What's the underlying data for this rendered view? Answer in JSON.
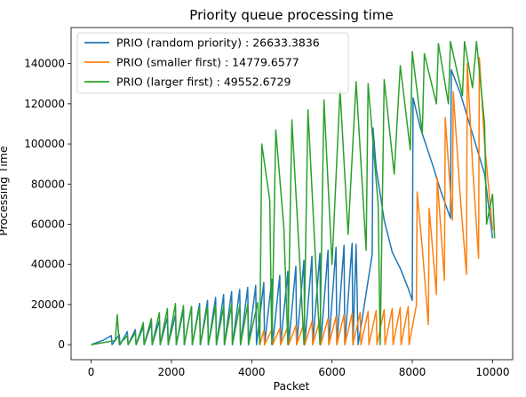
{
  "chart_data": {
    "type": "line",
    "title": "Priority queue processing time",
    "xlabel": "Packet",
    "ylabel": "Processing Time",
    "xlim": [
      -500,
      10500
    ],
    "ylim": [
      -7500,
      158000
    ],
    "xticks": [
      0,
      2000,
      4000,
      6000,
      8000,
      10000
    ],
    "yticks": [
      0,
      20000,
      40000,
      60000,
      80000,
      100000,
      120000,
      140000
    ],
    "grid": false,
    "legend_position": "top-left",
    "series": [
      {
        "name": "PRIO (random priority) : 26633.3836",
        "color": "#1f77b4",
        "points": [
          [
            0,
            0
          ],
          [
            300,
            2200
          ],
          [
            500,
            4500
          ],
          [
            520,
            0
          ],
          [
            700,
            5000
          ],
          [
            720,
            0
          ],
          [
            900,
            6500
          ],
          [
            920,
            0
          ],
          [
            1100,
            7500
          ],
          [
            1120,
            0
          ],
          [
            1300,
            9000
          ],
          [
            1320,
            0
          ],
          [
            1500,
            10500
          ],
          [
            1520,
            0
          ],
          [
            1700,
            12000
          ],
          [
            1720,
            0
          ],
          [
            1900,
            13500
          ],
          [
            1920,
            0
          ],
          [
            2100,
            15000
          ],
          [
            2120,
            0
          ],
          [
            2300,
            17000
          ],
          [
            2320,
            0
          ],
          [
            2500,
            19000
          ],
          [
            2520,
            0
          ],
          [
            2700,
            20500
          ],
          [
            2720,
            0
          ],
          [
            2900,
            22000
          ],
          [
            2920,
            0
          ],
          [
            3100,
            23500
          ],
          [
            3120,
            0
          ],
          [
            3300,
            25000
          ],
          [
            3320,
            0
          ],
          [
            3500,
            26500
          ],
          [
            3520,
            0
          ],
          [
            3700,
            27500
          ],
          [
            3720,
            0
          ],
          [
            3900,
            28500
          ],
          [
            3920,
            0
          ],
          [
            4100,
            29500
          ],
          [
            4120,
            0
          ],
          [
            4300,
            31000
          ],
          [
            4320,
            0
          ],
          [
            4500,
            32500
          ],
          [
            4520,
            0
          ],
          [
            4700,
            34500
          ],
          [
            4720,
            0
          ],
          [
            4900,
            36500
          ],
          [
            4920,
            0
          ],
          [
            5100,
            39000
          ],
          [
            5120,
            0
          ],
          [
            5300,
            42000
          ],
          [
            5320,
            0
          ],
          [
            5500,
            44000
          ],
          [
            5520,
            0
          ],
          [
            5700,
            45500
          ],
          [
            5720,
            0
          ],
          [
            5900,
            47000
          ],
          [
            5920,
            0
          ],
          [
            6100,
            48500
          ],
          [
            6120,
            0
          ],
          [
            6300,
            49500
          ],
          [
            6320,
            0
          ],
          [
            6500,
            50500
          ],
          [
            6520,
            0
          ],
          [
            6600,
            50000
          ],
          [
            6650,
            0
          ],
          [
            7000,
            45000
          ],
          [
            7020,
            108000
          ],
          [
            7100,
            88000
          ],
          [
            7300,
            62000
          ],
          [
            7500,
            46000
          ],
          [
            7700,
            38000
          ],
          [
            7900,
            28000
          ],
          [
            8000,
            22000
          ],
          [
            8020,
            123000
          ],
          [
            8200,
            108000
          ],
          [
            8500,
            90000
          ],
          [
            8700,
            77000
          ],
          [
            8950,
            63000
          ],
          [
            8970,
            137000
          ],
          [
            9200,
            125000
          ],
          [
            9500,
            105000
          ],
          [
            9800,
            85000
          ],
          [
            10000,
            53000
          ]
        ]
      },
      {
        "name": "PRIO (smaller first) : 14779.6577",
        "color": "#ff7f0e",
        "points": [
          [
            4200,
            0
          ],
          [
            4300,
            7000
          ],
          [
            4320,
            0
          ],
          [
            4500,
            7500
          ],
          [
            4520,
            0
          ],
          [
            4700,
            8000
          ],
          [
            4720,
            0
          ],
          [
            4900,
            9000
          ],
          [
            4920,
            0
          ],
          [
            5100,
            9500
          ],
          [
            5120,
            0
          ],
          [
            5300,
            10500
          ],
          [
            5320,
            0
          ],
          [
            5500,
            11500
          ],
          [
            5520,
            0
          ],
          [
            5700,
            12500
          ],
          [
            5720,
            0
          ],
          [
            5900,
            13000
          ],
          [
            5920,
            0
          ],
          [
            6100,
            14000
          ],
          [
            6120,
            0
          ],
          [
            6300,
            15000
          ],
          [
            6320,
            0
          ],
          [
            6500,
            15500
          ],
          [
            6520,
            0
          ],
          [
            6700,
            16000
          ],
          [
            6720,
            0
          ],
          [
            6900,
            16500
          ],
          [
            6920,
            0
          ],
          [
            7100,
            17000
          ],
          [
            7120,
            0
          ],
          [
            7300,
            17500
          ],
          [
            7320,
            0
          ],
          [
            7500,
            18000
          ],
          [
            7520,
            0
          ],
          [
            7700,
            18500
          ],
          [
            7720,
            0
          ],
          [
            7900,
            19000
          ],
          [
            7920,
            0
          ],
          [
            8100,
            19500
          ],
          [
            8120,
            76000
          ],
          [
            8250,
            48000
          ],
          [
            8400,
            10000
          ],
          [
            8420,
            68000
          ],
          [
            8600,
            25000
          ],
          [
            8620,
            83000
          ],
          [
            8800,
            32000
          ],
          [
            8820,
            113000
          ],
          [
            9000,
            62000
          ],
          [
            9020,
            126000
          ],
          [
            9200,
            72000
          ],
          [
            9350,
            35000
          ],
          [
            9370,
            140000
          ],
          [
            9500,
            90000
          ],
          [
            9650,
            43000
          ],
          [
            9670,
            143000
          ],
          [
            9800,
            100000
          ],
          [
            10000,
            57000
          ]
        ]
      },
      {
        "name": "PRIO (larger first) : 49552.6729",
        "color": "#2ca02c",
        "points": [
          [
            0,
            0
          ],
          [
            600,
            2000
          ],
          [
            650,
            15000
          ],
          [
            700,
            0
          ],
          [
            900,
            4500
          ],
          [
            920,
            0
          ],
          [
            1100,
            6000
          ],
          [
            1120,
            0
          ],
          [
            1300,
            11000
          ],
          [
            1320,
            0
          ],
          [
            1500,
            13000
          ],
          [
            1520,
            0
          ],
          [
            1700,
            16000
          ],
          [
            1720,
            0
          ],
          [
            1900,
            18000
          ],
          [
            1920,
            0
          ],
          [
            2100,
            20500
          ],
          [
            2120,
            0
          ],
          [
            2300,
            19500
          ],
          [
            2320,
            0
          ],
          [
            2500,
            19000
          ],
          [
            2520,
            0
          ],
          [
            2700,
            18500
          ],
          [
            2720,
            0
          ],
          [
            2900,
            19000
          ],
          [
            2920,
            0
          ],
          [
            3100,
            19500
          ],
          [
            3120,
            0
          ],
          [
            3300,
            19000
          ],
          [
            3320,
            0
          ],
          [
            3500,
            20000
          ],
          [
            3520,
            0
          ],
          [
            3700,
            19500
          ],
          [
            3720,
            0
          ],
          [
            3900,
            20000
          ],
          [
            3920,
            0
          ],
          [
            4150,
            21000
          ],
          [
            4200,
            0
          ],
          [
            4250,
            100000
          ],
          [
            4450,
            72000
          ],
          [
            4500,
            0
          ],
          [
            4600,
            107000
          ],
          [
            4800,
            58000
          ],
          [
            4900,
            0
          ],
          [
            5000,
            112000
          ],
          [
            5200,
            40000
          ],
          [
            5300,
            0
          ],
          [
            5400,
            117000
          ],
          [
            5600,
            38000
          ],
          [
            5700,
            0
          ],
          [
            5800,
            122000
          ],
          [
            6000,
            40000
          ],
          [
            6200,
            127000
          ],
          [
            6400,
            55000
          ],
          [
            6600,
            131000
          ],
          [
            6850,
            47000
          ],
          [
            6900,
            130000
          ],
          [
            7150,
            70000
          ],
          [
            7200,
            0
          ],
          [
            7300,
            132000
          ],
          [
            7550,
            85000
          ],
          [
            7700,
            139000
          ],
          [
            7950,
            97000
          ],
          [
            8000,
            146000
          ],
          [
            8250,
            105000
          ],
          [
            8300,
            145000
          ],
          [
            8600,
            120000
          ],
          [
            8650,
            150000
          ],
          [
            8900,
            120000
          ],
          [
            8950,
            151000
          ],
          [
            9250,
            124000
          ],
          [
            9300,
            151000
          ],
          [
            9500,
            128000
          ],
          [
            9600,
            151000
          ],
          [
            9800,
            110000
          ],
          [
            9850,
            60000
          ],
          [
            10000,
            75000
          ],
          [
            10050,
            53000
          ]
        ]
      }
    ]
  }
}
